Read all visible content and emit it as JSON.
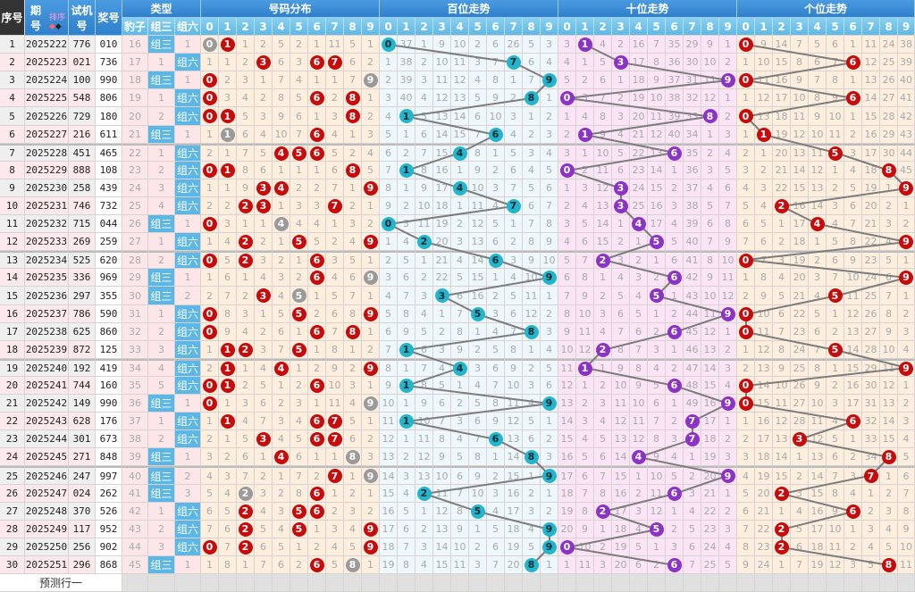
{
  "header": {
    "seq": "序号",
    "issue_top": "期",
    "issue_bottom": "号",
    "sort": "排序",
    "test_top": "试机",
    "test_bottom": "号",
    "draw": "奖号",
    "type": "类型",
    "dist": "号码分布",
    "bai": "百位走势",
    "shi": "十位走势",
    "ge": "个位走势",
    "baozi": "豹子",
    "zusan": "组三",
    "zuliu": "组六",
    "digits": [
      "0",
      "1",
      "2",
      "3",
      "4",
      "5",
      "6",
      "7",
      "8",
      "9"
    ]
  },
  "rows": [
    {
      "seq": "1",
      "issue": "2025222",
      "test": "776",
      "draw": "010"
    },
    {
      "seq": "2",
      "issue": "2025223",
      "test": "021",
      "draw": "736"
    },
    {
      "seq": "3",
      "issue": "2025224",
      "test": "100",
      "draw": "990"
    },
    {
      "seq": "4",
      "issue": "2025225",
      "test": "548",
      "draw": "806"
    },
    {
      "seq": "5",
      "issue": "2025226",
      "test": "729",
      "draw": "180"
    },
    {
      "seq": "6",
      "issue": "2025227",
      "test": "216",
      "draw": "611"
    },
    {
      "seq": "7",
      "issue": "2025228",
      "test": "451",
      "draw": "465"
    },
    {
      "seq": "8",
      "issue": "2025229",
      "test": "888",
      "draw": "108"
    },
    {
      "seq": "9",
      "issue": "2025230",
      "test": "258",
      "draw": "439"
    },
    {
      "seq": "10",
      "issue": "2025231",
      "test": "746",
      "draw": "732"
    },
    {
      "seq": "11",
      "issue": "2025232",
      "test": "715",
      "draw": "044"
    },
    {
      "seq": "12",
      "issue": "2025233",
      "test": "269",
      "draw": "259"
    },
    {
      "seq": "13",
      "issue": "2025234",
      "test": "525",
      "draw": "620"
    },
    {
      "seq": "14",
      "issue": "2025235",
      "test": "336",
      "draw": "969"
    },
    {
      "seq": "15",
      "issue": "2025236",
      "test": "297",
      "draw": "355"
    },
    {
      "seq": "16",
      "issue": "2025237",
      "test": "786",
      "draw": "590"
    },
    {
      "seq": "17",
      "issue": "2025238",
      "test": "625",
      "draw": "860"
    },
    {
      "seq": "18",
      "issue": "2025239",
      "test": "872",
      "draw": "125"
    },
    {
      "seq": "19",
      "issue": "2025240",
      "test": "192",
      "draw": "419"
    },
    {
      "seq": "20",
      "issue": "2025241",
      "test": "744",
      "draw": "160"
    },
    {
      "seq": "21",
      "issue": "2025242",
      "test": "149",
      "draw": "990"
    },
    {
      "seq": "22",
      "issue": "2025243",
      "test": "628",
      "draw": "176"
    },
    {
      "seq": "23",
      "issue": "2025244",
      "test": "301",
      "draw": "673"
    },
    {
      "seq": "24",
      "issue": "2025245",
      "test": "271",
      "draw": "848"
    },
    {
      "seq": "25",
      "issue": "2025246",
      "test": "247",
      "draw": "997"
    },
    {
      "seq": "26",
      "issue": "2025247",
      "test": "024",
      "draw": "262"
    },
    {
      "seq": "27",
      "issue": "2025248",
      "test": "370",
      "draw": "526"
    },
    {
      "seq": "28",
      "issue": "2025249",
      "test": "117",
      "draw": "952"
    },
    {
      "seq": "29",
      "issue": "2025250",
      "test": "256",
      "draw": "902"
    },
    {
      "seq": "30",
      "issue": "2025251",
      "test": "296",
      "draw": "868"
    }
  ],
  "first_row_omission": {
    "baozi": 16,
    "zusan": 0,
    "zuliu": 1,
    "dist": [
      0,
      0,
      1,
      2,
      5,
      2,
      1,
      11,
      5,
      1
    ],
    "bai": [
      0,
      37,
      1,
      9,
      10,
      2,
      6,
      26,
      5,
      3
    ],
    "shi": [
      3,
      0,
      4,
      2,
      16,
      7,
      35,
      29,
      9,
      1
    ],
    "ge": [
      0,
      9,
      14,
      7,
      5,
      6,
      1,
      11,
      24,
      38
    ]
  },
  "predict_label": "预测行一",
  "colors": {
    "dist_ball": "#c80a0a",
    "repeat_ball": "#9a9a9a",
    "bai_ball": "#23b5cc",
    "shi_ball": "#8b33c6",
    "ge_ball": "#c80a0a",
    "line": "#7d7d7d",
    "dist_bg": "#fdeede",
    "bai_bg": "#eef7fb",
    "shi_bg": "#fbe4f6",
    "ge_bg": "#fdeede",
    "type_bg": "#fde6e8"
  }
}
